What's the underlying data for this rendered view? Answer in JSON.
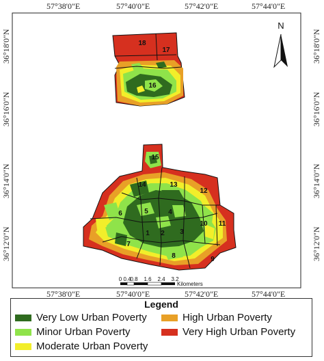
{
  "coordinates": {
    "top": [
      "57°38'0\"E",
      "57°40'0\"E",
      "57°42'0\"E",
      "57°44'0\"E"
    ],
    "bottom": [
      "57°38'0\"E",
      "57°40'0\"E",
      "57°42'0\"E",
      "57°44'0\"E"
    ],
    "left": [
      "36°18'0\"N",
      "36°16'0\"N",
      "36°14'0\"N",
      "36°12'0\"N"
    ],
    "right": [
      "36°18'0\"N",
      "36°16'0\"N",
      "36°14'0\"N",
      "36°12'0\"N"
    ]
  },
  "north_arrow": {
    "label": "N"
  },
  "scale_bar": {
    "ticks": [
      "0",
      "0.4",
      "0.8",
      "1.6",
      "2.4",
      "3.2"
    ],
    "unit": "Kilometers"
  },
  "zones": [
    "1",
    "2",
    "3",
    "4",
    "5",
    "6",
    "7",
    "8",
    "9",
    "10",
    "11",
    "12",
    "13",
    "14",
    "15",
    "16",
    "17",
    "18"
  ],
  "legend": {
    "title": "Legend",
    "items": [
      {
        "label": "Very Low Urban Poverty",
        "color": "#2f6b1f"
      },
      {
        "label": "High Urban Poverty",
        "color": "#e8a027"
      },
      {
        "label": "Minor Urban Poverty",
        "color": "#8fe34a"
      },
      {
        "label": "Very High Urban Poverty",
        "color": "#d6301f"
      },
      {
        "label": "Moderate Urban Poverty",
        "color": "#f2ee2a"
      }
    ]
  }
}
